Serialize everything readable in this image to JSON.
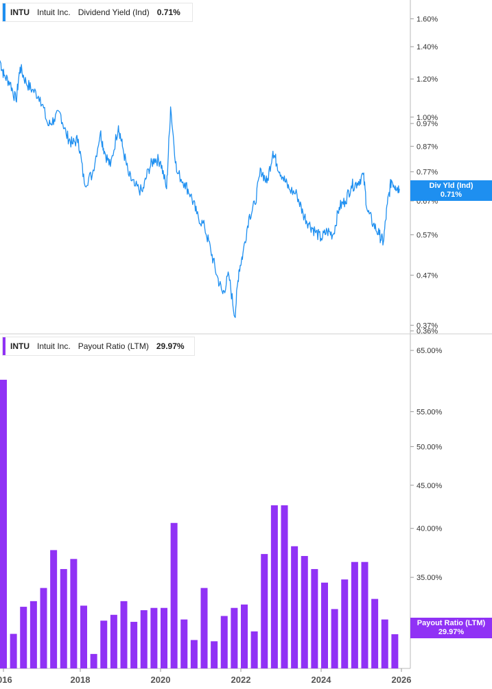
{
  "chart_data": [
    {
      "type": "line",
      "ticker": "INTU",
      "company": "Intuit Inc.",
      "metric": "Dividend Yield (Ind)",
      "current_value": "0.71%",
      "flag_label": "Div Yld (Ind)",
      "flag_value": "0.71%",
      "color": "#1e8ff0",
      "y_scale": "log",
      "ylim": [
        0.355,
        1.75
      ],
      "y_ticks": [
        "1.60%",
        "1.40%",
        "1.20%",
        "1.00%",
        "0.97%",
        "0.87%",
        "0.77%",
        "0.67%",
        "0.57%",
        "0.47%",
        "0.37%",
        "0.36%"
      ],
      "y_tick_values": [
        1.6,
        1.4,
        1.2,
        1.0,
        0.97,
        0.87,
        0.77,
        0.67,
        0.57,
        0.47,
        0.37,
        0.36
      ],
      "x_range": [
        2016.0,
        2026.0
      ],
      "x": [
        2016.0,
        2016.1,
        2016.25,
        2016.4,
        2016.5,
        2016.65,
        2016.8,
        2017.0,
        2017.2,
        2017.35,
        2017.5,
        2017.65,
        2017.8,
        2017.95,
        2018.1,
        2018.3,
        2018.5,
        2018.6,
        2018.75,
        2018.95,
        2019.05,
        2019.2,
        2019.35,
        2019.55,
        2019.7,
        2019.85,
        2020.0,
        2020.15,
        2020.25,
        2020.4,
        2020.6,
        2020.75,
        2020.9,
        2021.1,
        2021.25,
        2021.4,
        2021.55,
        2021.7,
        2021.85,
        2021.95,
        2022.05,
        2022.2,
        2022.35,
        2022.5,
        2022.65,
        2022.8,
        2022.9,
        2023.05,
        2023.2,
        2023.4,
        2023.55,
        2023.7,
        2023.85,
        2024.0,
        2024.15,
        2024.3,
        2024.45,
        2024.6,
        2024.75,
        2024.9,
        2025.05,
        2025.15,
        2025.3,
        2025.45,
        2025.55,
        2025.65,
        2025.75,
        2025.85,
        2025.95
      ],
      "y": [
        1.31,
        1.22,
        1.18,
        1.08,
        1.27,
        1.18,
        1.14,
        1.1,
        0.96,
        0.99,
        1.02,
        0.92,
        0.88,
        0.9,
        0.73,
        0.76,
        0.93,
        0.85,
        0.79,
        0.96,
        0.87,
        0.76,
        0.72,
        0.7,
        0.78,
        0.82,
        0.81,
        0.71,
        1.05,
        0.77,
        0.73,
        0.69,
        0.63,
        0.59,
        0.53,
        0.47,
        0.43,
        0.47,
        0.385,
        0.48,
        0.52,
        0.62,
        0.66,
        0.78,
        0.73,
        0.85,
        0.8,
        0.75,
        0.71,
        0.69,
        0.63,
        0.6,
        0.58,
        0.56,
        0.58,
        0.57,
        0.65,
        0.67,
        0.72,
        0.73,
        0.76,
        0.64,
        0.6,
        0.57,
        0.55,
        0.66,
        0.74,
        0.72,
        0.71
      ]
    },
    {
      "type": "bar",
      "ticker": "INTU",
      "company": "Intuit Inc.",
      "metric": "Payout Ratio (LTM)",
      "current_value": "29.97%",
      "flag_label": "Payout Ratio (LTM)",
      "flag_value": "29.97%",
      "color": "#9032f5",
      "y_scale": "log",
      "ylim": [
        27.3,
        68.0
      ],
      "y_ticks": [
        "65.00%",
        "55.00%",
        "50.00%",
        "45.00%",
        "40.00%",
        "35.00%"
      ],
      "y_tick_values": [
        65,
        55,
        50,
        45,
        40,
        35
      ],
      "x_range": [
        2016.0,
        2026.0
      ],
      "x_ticks": [
        "016",
        "2018",
        "2020",
        "2022",
        "2024",
        "2026"
      ],
      "x_tick_values": [
        2016,
        2018,
        2020,
        2022,
        2024,
        2026
      ],
      "x": [
        2016.0,
        2016.25,
        2016.5,
        2016.75,
        2017.0,
        2017.25,
        2017.5,
        2017.75,
        2018.0,
        2018.25,
        2018.5,
        2018.75,
        2019.0,
        2019.25,
        2019.5,
        2019.75,
        2020.0,
        2020.25,
        2020.5,
        2020.75,
        2021.0,
        2021.25,
        2021.5,
        2021.75,
        2022.0,
        2022.25,
        2022.5,
        2022.75,
        2023.0,
        2023.25,
        2023.5,
        2023.75,
        2024.0,
        2024.25,
        2024.5,
        2024.75,
        2025.0,
        2025.25,
        2025.5,
        2025.75
      ],
      "values": [
        60.0,
        30.0,
        32.3,
        32.8,
        34.0,
        37.7,
        35.8,
        36.8,
        32.4,
        28.4,
        31.1,
        31.6,
        32.8,
        31.0,
        32.0,
        32.2,
        32.2,
        40.6,
        31.2,
        29.5,
        34.0,
        29.4,
        31.5,
        32.2,
        32.5,
        30.2,
        37.3,
        42.6,
        42.6,
        38.1,
        37.1,
        35.8,
        34.5,
        32.1,
        34.8,
        36.5,
        36.5,
        33.0,
        31.2,
        29.97
      ]
    }
  ]
}
